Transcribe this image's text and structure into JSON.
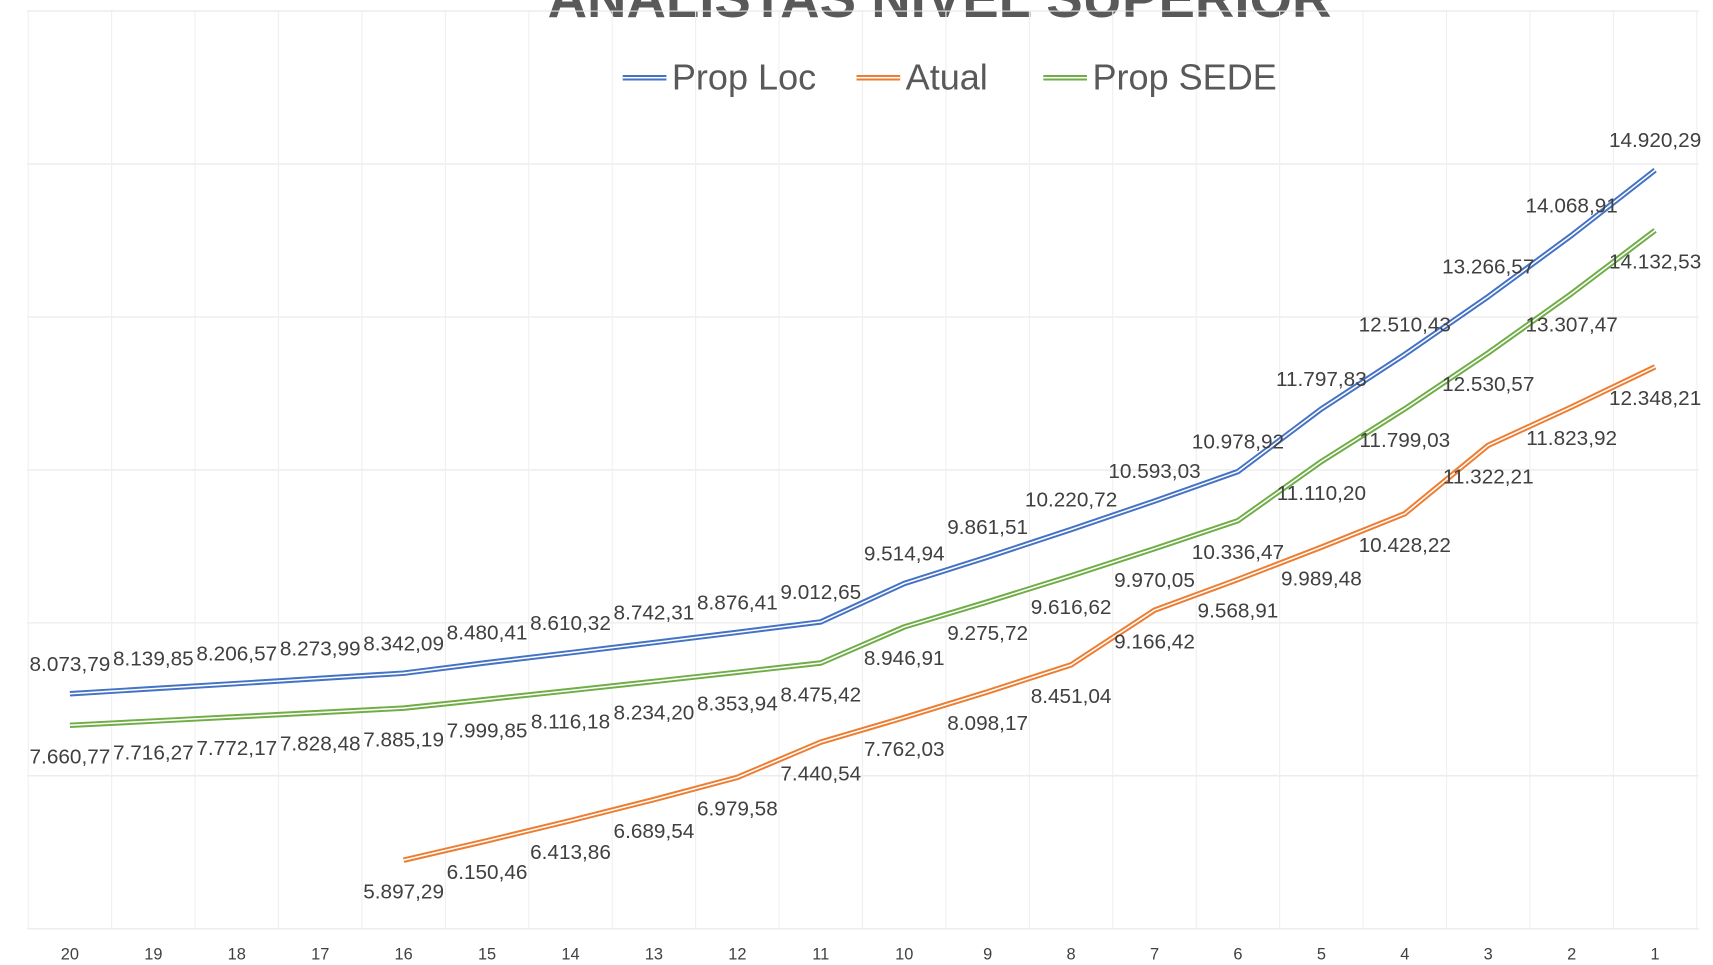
{
  "chart_data": {
    "type": "line",
    "title": "ANALISTAS NÍVEL SUPERIOR",
    "categories": [
      "20",
      "19",
      "18",
      "17",
      "16",
      "15",
      "14",
      "13",
      "12",
      "11",
      "10",
      "9",
      "8",
      "7",
      "6",
      "5",
      "4",
      "3",
      "2",
      "1"
    ],
    "series": [
      {
        "name": "Prop Loc",
        "color": "#4472c4",
        "values": [
          8073.79,
          8139.85,
          8206.57,
          8273.99,
          8342.09,
          8480.41,
          8610.32,
          8742.31,
          8876.41,
          9012.65,
          9514.94,
          9861.51,
          10220.72,
          10593.03,
          10978.92,
          11797.83,
          12510.43,
          13266.57,
          14068.91,
          14920.29
        ],
        "value_labels": [
          "8.073,79",
          "8.139,85",
          "8.206,57",
          "8.273,99",
          "8.342,09",
          "8.480,41",
          "8.610,32",
          "8.742,31",
          "8.876,41",
          "9.012,65",
          "9.514,94",
          "9.861,51",
          "10.220,72",
          "10.593,03",
          "10.978,92",
          "11.797,83",
          "12.510,43",
          "13.266,57",
          "14.068,91",
          "14.920,29"
        ]
      },
      {
        "name": "Atual",
        "color": "#ed7d31",
        "values": [
          null,
          null,
          null,
          null,
          5897.29,
          6150.46,
          6413.86,
          6689.54,
          6979.58,
          7440.54,
          7762.03,
          8098.17,
          8451.04,
          9166.42,
          9568.91,
          9989.48,
          10428.22,
          11322.21,
          11823.92,
          12348.21
        ],
        "value_labels": [
          null,
          null,
          null,
          null,
          "5.897,29",
          "6.150,46",
          "6.413,86",
          "6.689,54",
          "6.979,58",
          "7.440,54",
          "7.762,03",
          "8.098,17",
          "8.451,04",
          "9.166,42",
          "9.568,91",
          "9.989,48",
          "10.428,22",
          "11.322,21",
          "11.823,92",
          "12.348,21"
        ]
      },
      {
        "name": "Prop SEDE",
        "color": "#70ad47",
        "values": [
          7660.77,
          7716.27,
          7772.17,
          7828.48,
          7885.19,
          7999.85,
          8116.18,
          8234.2,
          8353.94,
          8475.42,
          8946.91,
          9275.72,
          9616.62,
          9970.05,
          10336.47,
          11110.2,
          11799.03,
          12530.57,
          13307.47,
          14132.53
        ],
        "value_labels": [
          "7.660,77",
          "7.716,27",
          "7.772,17",
          "7.828,48",
          "7.885,19",
          "7.999,85",
          "8.116,18",
          "8.234,20",
          "8.353,94",
          "8.475,42",
          "8.946,91",
          "9.275,72",
          "9.616,62",
          "9.970,05",
          "10.336,47",
          "11.110,20",
          "11.799,03",
          "12.530,57",
          "13.307,47",
          "14.132,53"
        ]
      }
    ],
    "ylim": [
      5000,
      17000
    ],
    "yticks": [
      5000,
      7000,
      9000,
      11000,
      13000,
      15000,
      17000
    ],
    "grid": true,
    "legend": "top"
  }
}
